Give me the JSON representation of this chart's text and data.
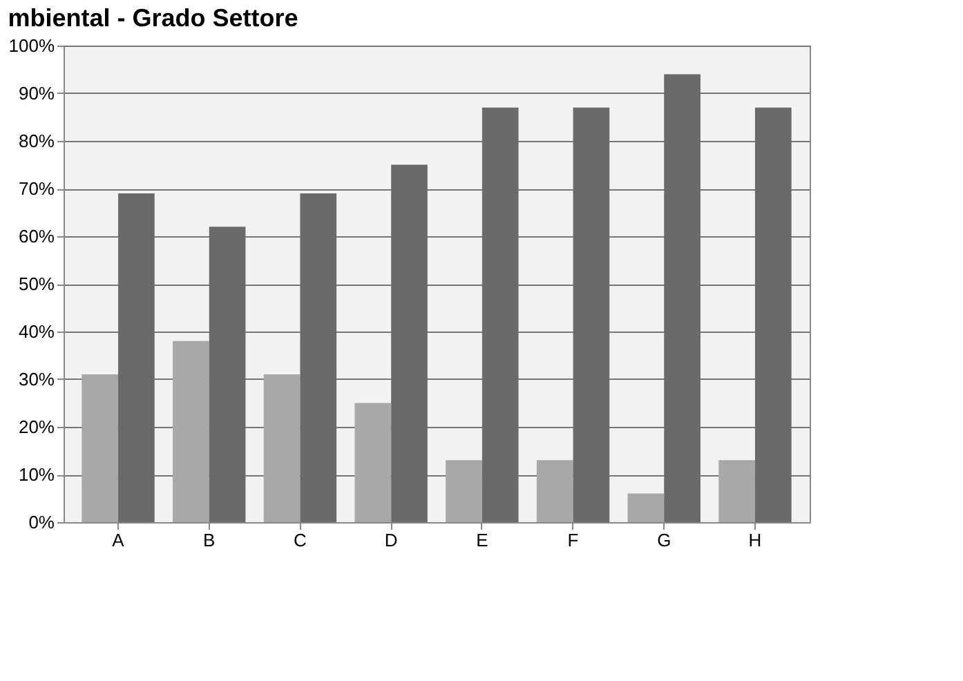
{
  "chart_data": {
    "type": "bar",
    "title": "mbiental - Grado Settore",
    "categories": [
      "A",
      "B",
      "C",
      "D",
      "E",
      "F",
      "G",
      "H"
    ],
    "series": [
      {
        "color": "#a8a8a8",
        "values": [
          31,
          38,
          31,
          25,
          13,
          13,
          6,
          13
        ]
      },
      {
        "color": "#6a6a6a",
        "values": [
          69,
          62,
          69,
          75,
          87,
          87,
          94,
          87
        ]
      }
    ],
    "ylim": [
      0,
      100
    ],
    "yticks": [
      {
        "value": 0,
        "label": "0%"
      },
      {
        "value": 10,
        "label": "10%"
      },
      {
        "value": 20,
        "label": "20%"
      },
      {
        "value": 30,
        "label": "30%"
      },
      {
        "value": 40,
        "label": "40%"
      },
      {
        "value": 50,
        "label": "50%"
      },
      {
        "value": 60,
        "label": "60%"
      },
      {
        "value": 70,
        "label": "70%"
      },
      {
        "value": 80,
        "label": "80%"
      },
      {
        "value": 90,
        "label": "90%"
      },
      {
        "value": 100,
        "label": "100%"
      }
    ],
    "grid": "y"
  }
}
